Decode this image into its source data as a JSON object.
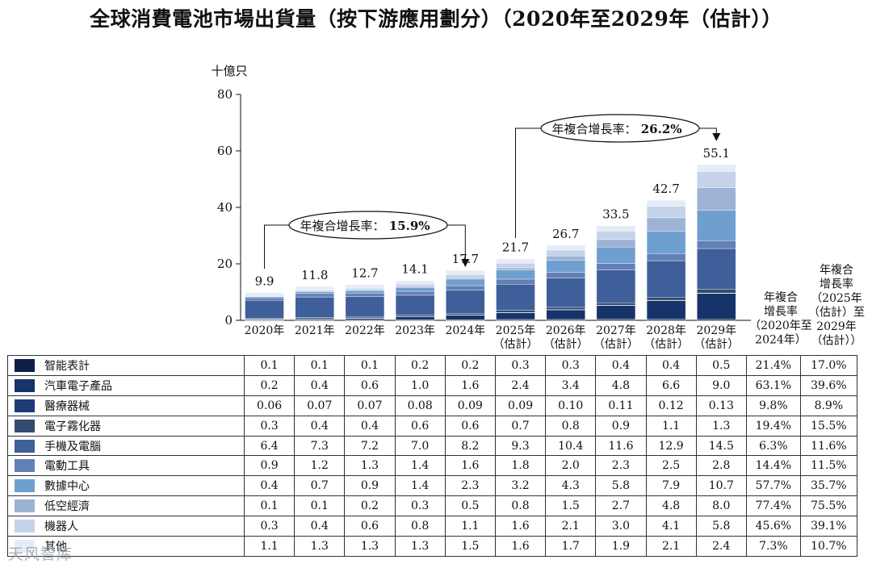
{
  "title": "全球消費電池市場出貨量（按下游應用劃分）（2020年至2029年（估計））",
  "watermark": "天风智库",
  "chart_data": {
    "type": "bar",
    "stacked": true,
    "ylabel": "十億只",
    "ylim": [
      0,
      80
    ],
    "yticks": [
      0,
      20,
      40,
      60,
      80
    ],
    "categories": [
      "2020年",
      "2021年",
      "2022年",
      "2023年",
      "2024年",
      "2025年\n（估計）",
      "2026年\n（估計）",
      "2027年\n（估計）",
      "2028年\n（估計）",
      "2029年\n（估計）"
    ],
    "totals": [
      "9.9",
      "11.8",
      "12.7",
      "14.1",
      "17.7",
      "21.7",
      "26.7",
      "33.5",
      "42.7",
      "55.1"
    ],
    "series": [
      {
        "name": "智能表計",
        "color": "#0d2147",
        "values": [
          0.1,
          0.1,
          0.1,
          0.2,
          0.2,
          0.3,
          0.3,
          0.4,
          0.4,
          0.5
        ]
      },
      {
        "name": "汽車電子產品",
        "color": "#16346a",
        "values": [
          0.2,
          0.4,
          0.6,
          1.0,
          1.6,
          2.4,
          3.4,
          4.8,
          6.6,
          9.0
        ]
      },
      {
        "name": "醫療器械",
        "color": "#1f3b78",
        "values": [
          0.06,
          0.07,
          0.07,
          0.08,
          0.09,
          0.09,
          0.1,
          0.11,
          0.12,
          0.13
        ]
      },
      {
        "name": "電子霧化器",
        "color": "#334c70",
        "values": [
          0.3,
          0.4,
          0.4,
          0.6,
          0.6,
          0.7,
          0.8,
          0.9,
          1.1,
          1.3
        ]
      },
      {
        "name": "手機及電腦",
        "color": "#3e5f9a",
        "values": [
          6.4,
          7.3,
          7.2,
          7.0,
          8.2,
          9.3,
          10.4,
          11.6,
          12.9,
          14.5
        ]
      },
      {
        "name": "電動工具",
        "color": "#6380b5",
        "values": [
          0.9,
          1.2,
          1.3,
          1.4,
          1.6,
          1.8,
          2.0,
          2.3,
          2.5,
          2.8
        ]
      },
      {
        "name": "數據中心",
        "color": "#6f9fcf",
        "values": [
          0.4,
          0.7,
          0.9,
          1.4,
          2.3,
          3.2,
          4.3,
          5.8,
          7.9,
          10.7
        ]
      },
      {
        "name": "低空經濟",
        "color": "#9eb2d6",
        "values": [
          0.1,
          0.1,
          0.2,
          0.3,
          0.5,
          0.8,
          1.5,
          2.7,
          4.8,
          8.0
        ]
      },
      {
        "name": "機器人",
        "color": "#c4d3ea",
        "values": [
          0.3,
          0.4,
          0.6,
          0.8,
          1.1,
          1.6,
          2.1,
          3.0,
          4.1,
          5.8
        ]
      },
      {
        "name": "其他",
        "color": "#e6ecf6",
        "values": [
          1.1,
          1.3,
          1.3,
          1.3,
          1.5,
          1.6,
          1.7,
          1.9,
          2.1,
          2.4
        ]
      }
    ],
    "cagr_annotations": [
      {
        "text": "年複合增長率：",
        "value": "15.9%",
        "from": "2020年",
        "to": "2024年"
      },
      {
        "text": "年複合增長率：",
        "value": "26.2%",
        "from": "2025年",
        "to": "2029年"
      }
    ],
    "cagr_headers": [
      "年複合\n增長率\n（2020年至\n2024年）",
      "年複合\n增長率\n（2025年\n（估計）至\n2029年\n（估計））"
    ]
  },
  "table": {
    "rows": [
      {
        "values": [
          "0.1",
          "0.1",
          "0.1",
          "0.2",
          "0.2",
          "0.3",
          "0.3",
          "0.4",
          "0.4",
          "0.5"
        ],
        "cagr1": "21.4%",
        "cagr2": "17.0%"
      },
      {
        "values": [
          "0.2",
          "0.4",
          "0.6",
          "1.0",
          "1.6",
          "2.4",
          "3.4",
          "4.8",
          "6.6",
          "9.0"
        ],
        "cagr1": "63.1%",
        "cagr2": "39.6%"
      },
      {
        "values": [
          "0.06",
          "0.07",
          "0.07",
          "0.08",
          "0.09",
          "0.09",
          "0.10",
          "0.11",
          "0.12",
          "0.13"
        ],
        "cagr1": "9.8%",
        "cagr2": "8.9%"
      },
      {
        "values": [
          "0.3",
          "0.4",
          "0.4",
          "0.6",
          "0.6",
          "0.7",
          "0.8",
          "0.9",
          "1.1",
          "1.3"
        ],
        "cagr1": "19.4%",
        "cagr2": "15.5%"
      },
      {
        "values": [
          "6.4",
          "7.3",
          "7.2",
          "7.0",
          "8.2",
          "9.3",
          "10.4",
          "11.6",
          "12.9",
          "14.5"
        ],
        "cagr1": "6.3%",
        "cagr2": "11.6%"
      },
      {
        "values": [
          "0.9",
          "1.2",
          "1.3",
          "1.4",
          "1.6",
          "1.8",
          "2.0",
          "2.3",
          "2.5",
          "2.8"
        ],
        "cagr1": "14.4%",
        "cagr2": "11.5%"
      },
      {
        "values": [
          "0.4",
          "0.7",
          "0.9",
          "1.4",
          "2.3",
          "3.2",
          "4.3",
          "5.8",
          "7.9",
          "10.7"
        ],
        "cagr1": "57.7%",
        "cagr2": "35.7%"
      },
      {
        "values": [
          "0.1",
          "0.1",
          "0.2",
          "0.3",
          "0.5",
          "0.8",
          "1.5",
          "2.7",
          "4.8",
          "8.0"
        ],
        "cagr1": "77.4%",
        "cagr2": "75.5%"
      },
      {
        "values": [
          "0.3",
          "0.4",
          "0.6",
          "0.8",
          "1.1",
          "1.6",
          "2.1",
          "3.0",
          "4.1",
          "5.8"
        ],
        "cagr1": "45.6%",
        "cagr2": "39.1%"
      },
      {
        "values": [
          "1.1",
          "1.3",
          "1.3",
          "1.3",
          "1.5",
          "1.6",
          "1.7",
          "1.9",
          "2.1",
          "2.4"
        ],
        "cagr1": "7.3%",
        "cagr2": "10.7%"
      }
    ]
  }
}
